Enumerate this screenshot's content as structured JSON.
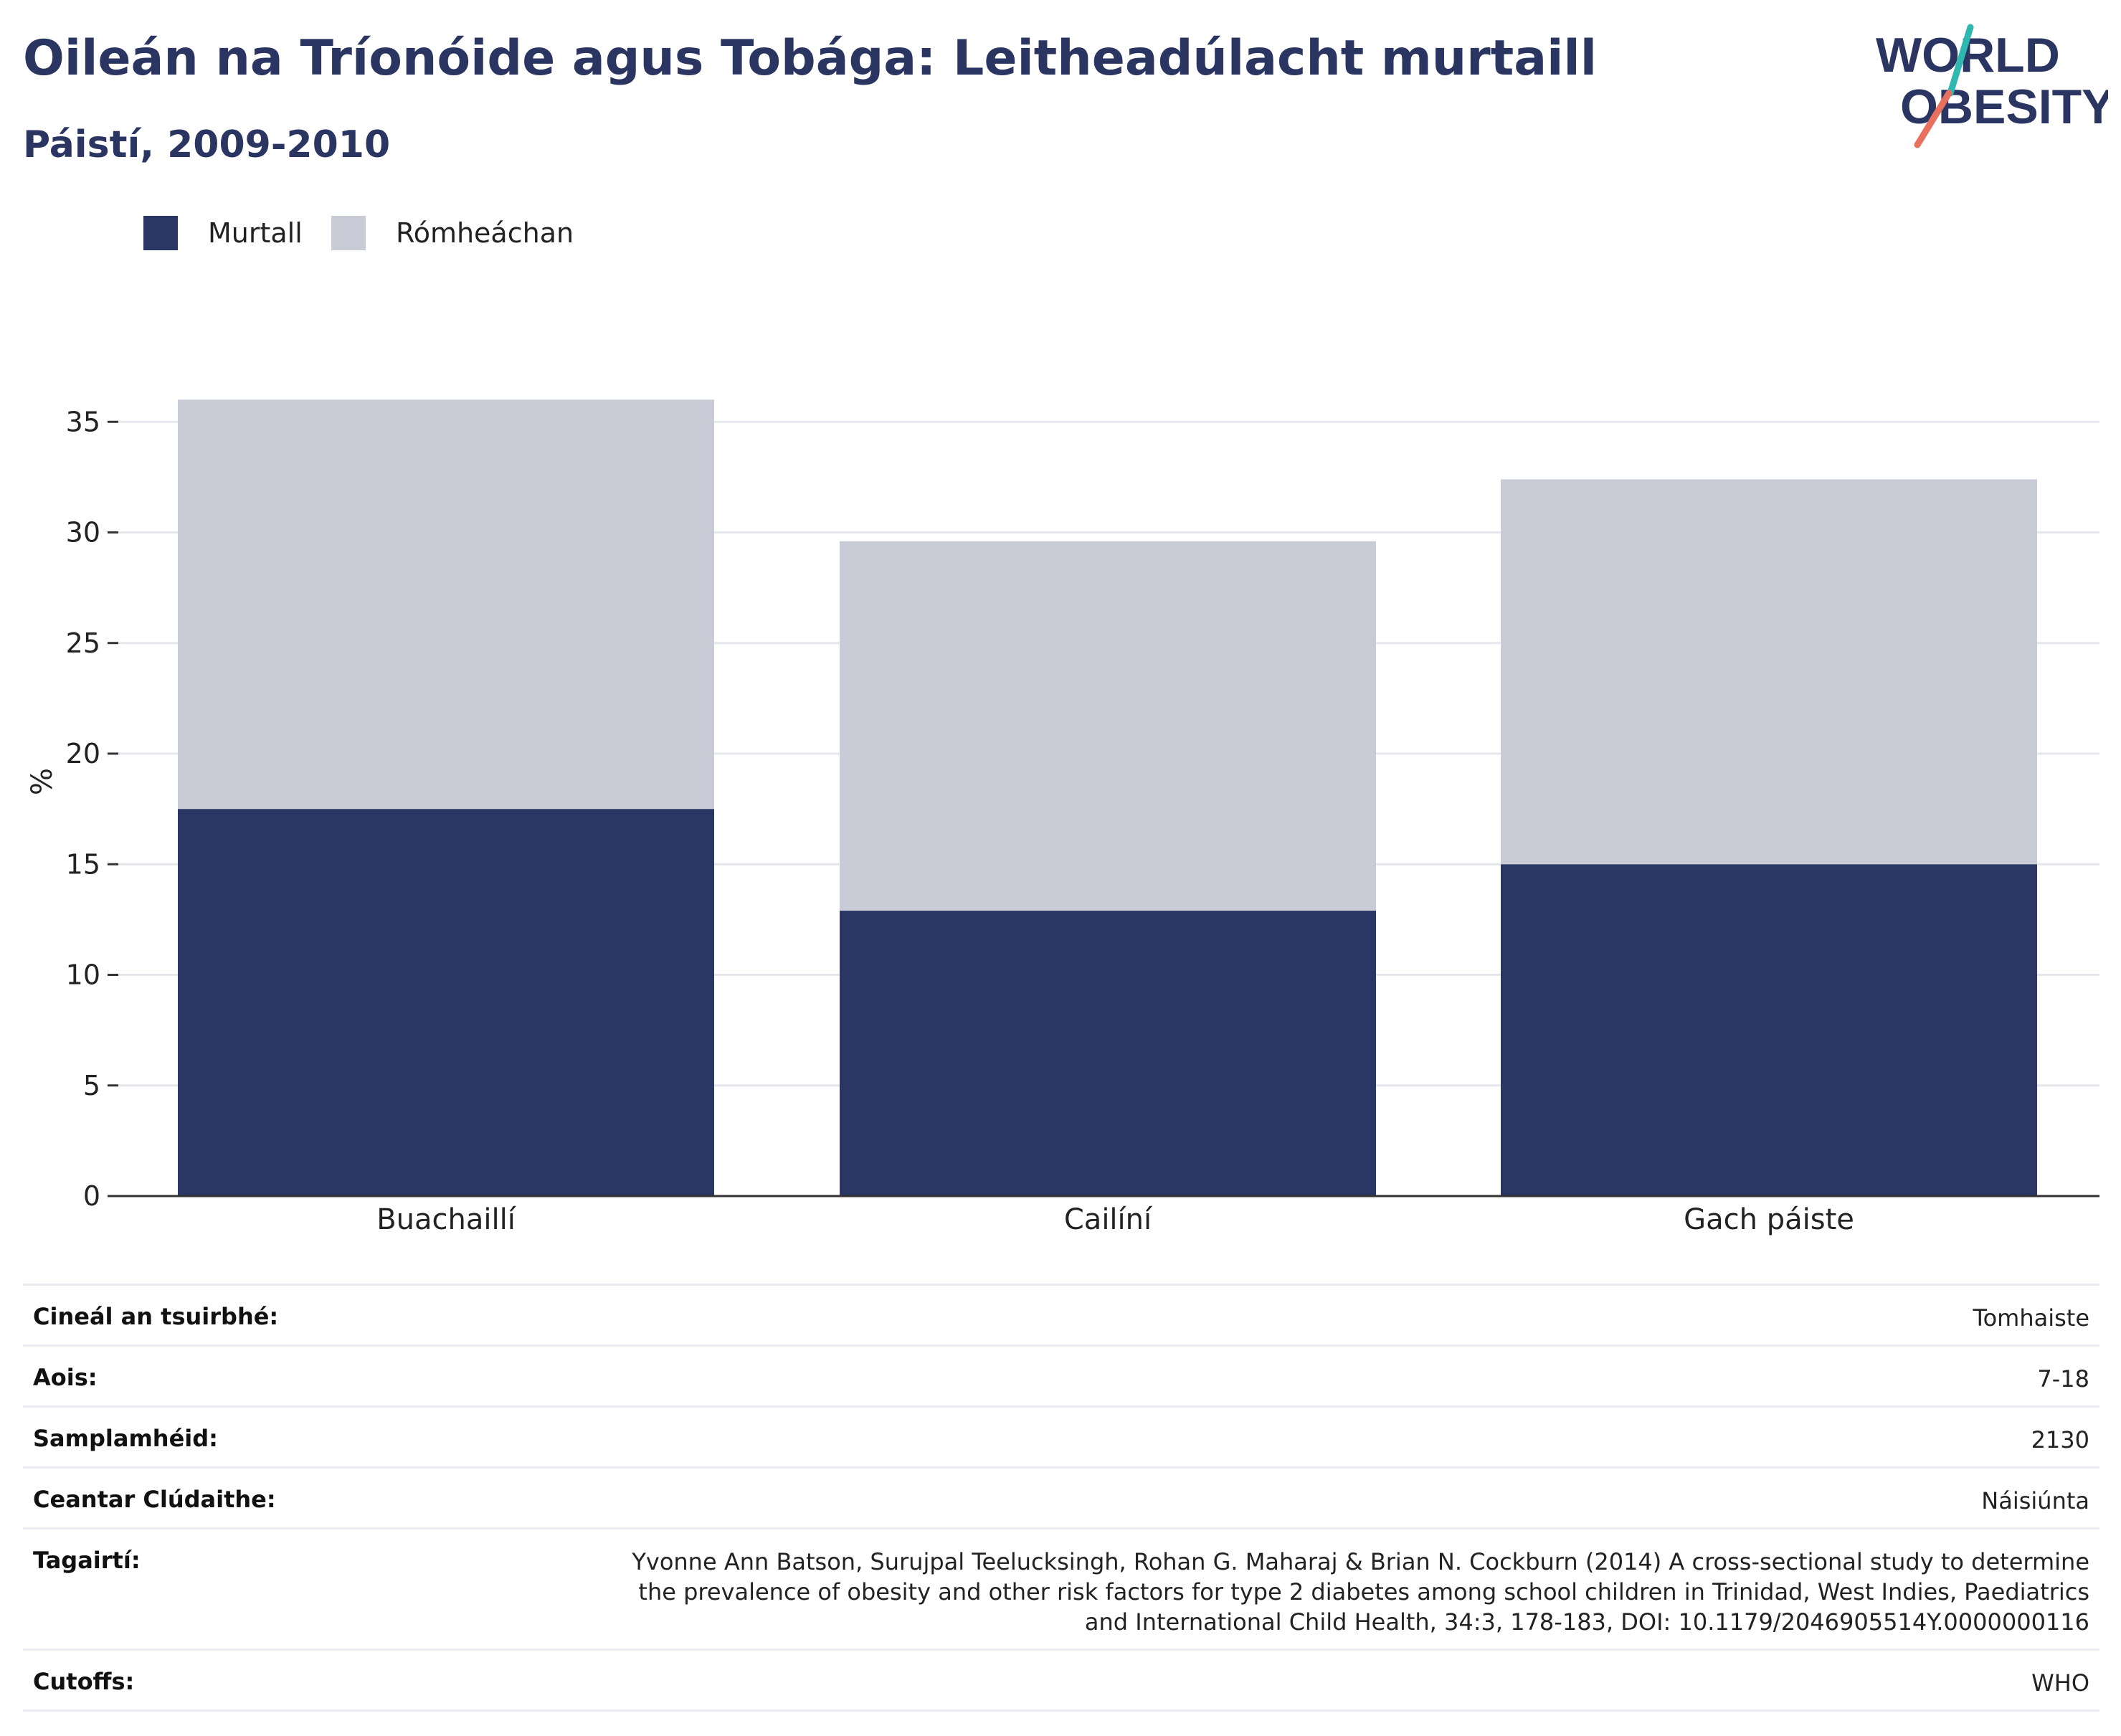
{
  "header": {
    "title": "Oileán na Tríonóide agus Tobága: Leitheadúlacht murtaill",
    "subtitle": "Páistí, 2009-2010",
    "logo_line1": "WORLD",
    "logo_line2": "OBESITY"
  },
  "colors": {
    "obese": "#2a3663",
    "overweight": "#c9cbd7",
    "axis": "#333333",
    "grid": "#e6e7ec",
    "title": "#2a3562",
    "logo_teal": "#2fb8b0",
    "logo_coral": "#e8705f"
  },
  "chart_data": {
    "type": "bar",
    "stacked": true,
    "title": "Oileán na Tríonóide agus Tobága: Leitheadúlacht murtaill",
    "subtitle": "Páistí, 2009-2010",
    "categories": [
      "Buachaillí",
      "Cailíní",
      "Gach páiste"
    ],
    "series": [
      {
        "name": "Murtall",
        "values": [
          17.5,
          12.9,
          15.0
        ]
      },
      {
        "name": "Rómheáchan",
        "values": [
          18.5,
          16.7,
          17.4
        ]
      }
    ],
    "ylabel": "%",
    "xlabel": "",
    "ylim": [
      0,
      36
    ],
    "yticks": [
      0,
      5,
      10,
      15,
      20,
      25,
      30,
      35
    ],
    "grid": true,
    "legend_position": "top-left"
  },
  "info": [
    {
      "label": "Cineál an tsuirbhé:",
      "value": "Tomhaiste"
    },
    {
      "label": "Aois:",
      "value": "7-18"
    },
    {
      "label": "Samplamhéid:",
      "value": "2130"
    },
    {
      "label": "Ceantar Clúdaithe:",
      "value": "Náisiúnta"
    },
    {
      "label": "Tagairtí:",
      "value": "Yvonne Ann Batson, Surujpal Teelucksingh, Rohan G. Maharaj & Brian N. Cockburn (2014) A cross-sectional study to determine the prevalence of obesity and other risk factors for type 2 diabetes among school children in Trinidad, West Indies, Paediatrics and International Child Health, 34:3, 178-183, DOI: 10.1179/2046905514Y.0000000116"
    },
    {
      "label": "Cutoffs:",
      "value": "WHO"
    }
  ]
}
